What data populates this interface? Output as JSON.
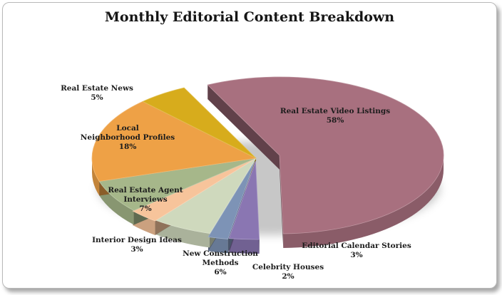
{
  "chart_data": {
    "type": "pie",
    "title": "Monthly Editorial Content Breakdown",
    "slices": [
      {
        "name": "Real Estate Video Listings",
        "value": 58,
        "label": "58%",
        "color": "#a8707f"
      },
      {
        "name": "Editorial Calendar Stories",
        "value": 3,
        "label": "3%",
        "color": "#8a76b2"
      },
      {
        "name": "Celebrity Houses",
        "value": 2,
        "label": "2%",
        "color": "#7d93b6"
      },
      {
        "name": "New Construction Methods",
        "value": 6,
        "label": "6%",
        "color": "#cfd9bd"
      },
      {
        "name": "Interior Design Ideas",
        "value": 3,
        "label": "3%",
        "color": "#f7c49b"
      },
      {
        "name": "Real Estate Agent Interviews",
        "value": 7,
        "label": "7%",
        "color": "#a6b78a"
      },
      {
        "name": "Local Neighborhood Profiles",
        "value": 18,
        "label": "18%",
        "color": "#eea146"
      },
      {
        "name": "Real Estate News",
        "value": 5,
        "label": "5%",
        "color": "#d7ac1c"
      }
    ]
  }
}
